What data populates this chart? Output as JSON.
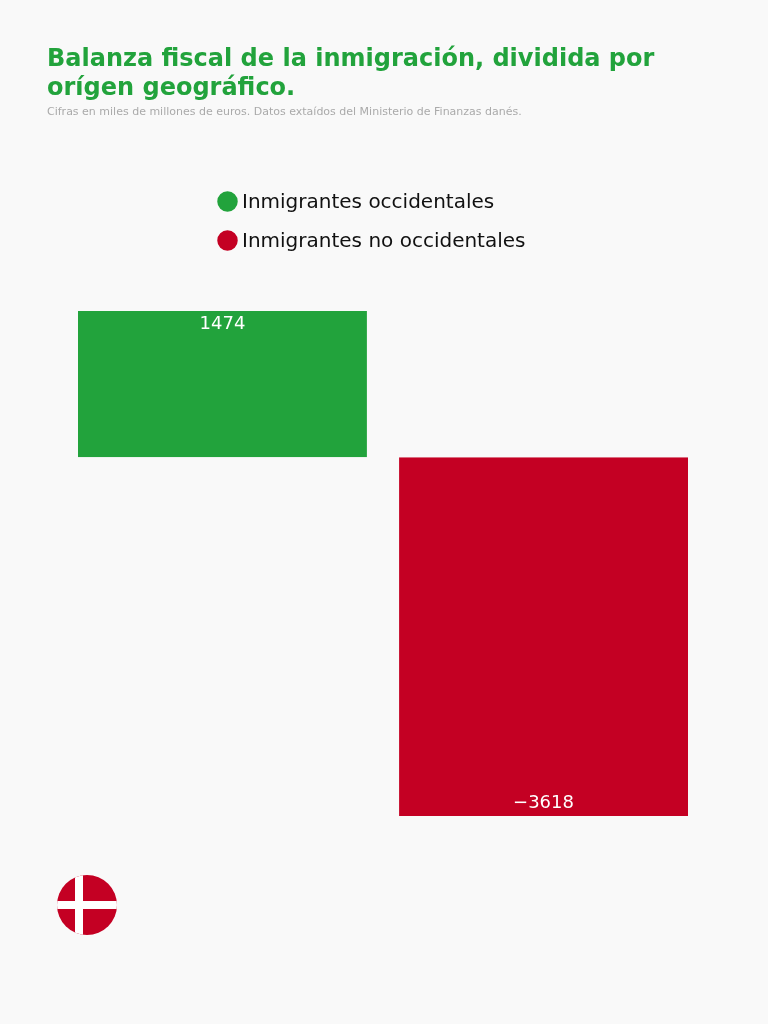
{
  "chart_data": {
    "type": "bar",
    "title": "Balanza fiscal de la inmigración, dividida por orígen geográfico.",
    "subtitle": "Cifras en miles de millones de euros. Datos extaídos del Ministerio de Finanzas danés.",
    "categories": [
      null
    ],
    "series": [
      {
        "name": "Inmigrantes occidentales",
        "color": "#22a33c",
        "values": [
          1474
        ]
      },
      {
        "name": "Inmigrantes no occidentales",
        "color": "#c40023",
        "values": [
          -3618
        ]
      }
    ],
    "data_labels": true,
    "legend": "top",
    "tick_labels": false,
    "grid": false
  }
}
